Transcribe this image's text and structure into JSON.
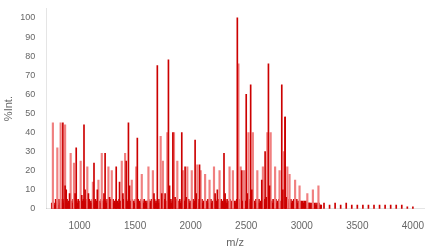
{
  "chart_data": {
    "type": "bar",
    "xlabel": "m/z",
    "ylabel": "%Int.",
    "xlim": [
      700,
      4100
    ],
    "ylim": [
      0,
      105
    ],
    "xticks": [
      1000,
      1500,
      2000,
      2500,
      3000,
      3500,
      4000
    ],
    "yticks": [
      0,
      10,
      20,
      30,
      40,
      50,
      60,
      70,
      80,
      90,
      100
    ],
    "grid": false,
    "series": [
      {
        "color": "#cc0000",
        "x": [
          750,
          755,
          762,
          770,
          778,
          785,
          793,
          800,
          808,
          815,
          822,
          828,
          836,
          842,
          848,
          856,
          862,
          868,
          875,
          882,
          888,
          895,
          902,
          908,
          915,
          922,
          928,
          935,
          942,
          948,
          955,
          962,
          968,
          975,
          982,
          988,
          995,
          1002,
          1008,
          1015,
          1022,
          1028,
          1035,
          1042,
          1048,
          1055,
          1062,
          1068,
          1075,
          1082,
          1088,
          1095,
          1102,
          1108,
          1115,
          1122,
          1128,
          1135,
          1142,
          1148,
          1155,
          1162,
          1168,
          1175,
          1182,
          1188,
          1195,
          1202,
          1208,
          1215,
          1222,
          1228,
          1235,
          1242,
          1248,
          1255,
          1262,
          1268,
          1275,
          1282,
          1288,
          1295,
          1302,
          1308,
          1315,
          1322,
          1328,
          1335,
          1342,
          1348,
          1355,
          1362,
          1368,
          1375,
          1382,
          1388,
          1395,
          1402,
          1408,
          1415,
          1422,
          1428,
          1435,
          1442,
          1448,
          1455,
          1462,
          1468,
          1475,
          1482,
          1488,
          1495,
          1502,
          1508,
          1515,
          1522,
          1528,
          1535,
          1542,
          1548,
          1555,
          1562,
          1568,
          1575,
          1582,
          1588,
          1595,
          1602,
          1608,
          1615,
          1622,
          1628,
          1635,
          1642,
          1648,
          1655,
          1662,
          1668,
          1675,
          1682,
          1688,
          1695,
          1702,
          1708,
          1715,
          1722,
          1728,
          1735,
          1742,
          1748,
          1755,
          1762,
          1768,
          1775,
          1782,
          1788,
          1795,
          1802,
          1808,
          1815,
          1822,
          1828,
          1835,
          1842,
          1848,
          1855,
          1862,
          1868,
          1875,
          1882,
          1888,
          1895,
          1902,
          1908,
          1915,
          1922,
          1928,
          1935,
          1942,
          1948,
          1955,
          1962,
          1968,
          1975,
          1982,
          1988,
          1995,
          2002,
          2008,
          2015,
          2022,
          2028,
          2035,
          2042,
          2048,
          2055,
          2062,
          2068,
          2075,
          2082,
          2088,
          2095,
          2102,
          2108,
          2115,
          2122,
          2128,
          2135,
          2142,
          2148,
          2155,
          2162,
          2168,
          2175,
          2182,
          2188,
          2195,
          2202,
          2208,
          2215,
          2222,
          2228,
          2235,
          2242,
          2248,
          2255,
          2262,
          2268,
          2275,
          2282,
          2288,
          2295,
          2302,
          2308,
          2315,
          2322,
          2328,
          2335,
          2342,
          2348,
          2355,
          2362,
          2368,
          2375,
          2382,
          2388,
          2395,
          2402,
          2408,
          2415,
          2422,
          2428,
          2435,
          2442,
          2448,
          2455,
          2462,
          2468,
          2475,
          2482,
          2488,
          2495,
          2502,
          2508,
          2515,
          2522,
          2528,
          2535,
          2542,
          2548,
          2555,
          2562,
          2568,
          2575,
          2582,
          2588,
          2595,
          2602,
          2608,
          2615,
          2622,
          2628,
          2635,
          2642,
          2648,
          2655,
          2662,
          2668,
          2675,
          2682,
          2688,
          2695,
          2702,
          2708,
          2715,
          2722,
          2728,
          2735,
          2742,
          2748,
          2755,
          2762,
          2768,
          2775,
          2782,
          2788,
          2795,
          2802,
          2808,
          2815,
          2822,
          2828,
          2835,
          2842,
          2848,
          2855,
          2862,
          2868,
          2875,
          2882,
          2888,
          2895,
          2902,
          2908,
          2915,
          2922,
          2928,
          2935,
          2942,
          2948,
          2955,
          2962,
          2968,
          2975,
          2982,
          2988,
          2995,
          3002,
          3008,
          3015,
          3022,
          3028,
          3035,
          3042,
          3048,
          3055,
          3062,
          3068,
          3075,
          3082,
          3088,
          3095,
          3102,
          3108,
          3115,
          3122,
          3128,
          3135,
          3142,
          3148,
          3155,
          3162,
          3168,
          3175,
          3200,
          3250,
          3300,
          3350,
          3400,
          3450,
          3500,
          3550,
          3600,
          3650,
          3700,
          3750,
          3800,
          3850,
          3900,
          3950,
          4000
        ],
        "values": [
          3,
          2,
          4,
          3,
          2,
          5,
          3,
          4,
          2,
          5,
          3,
          4,
          3,
          5,
          4,
          3,
          5,
          3,
          4,
          3,
          5,
          3,
          4,
          3,
          5,
          3,
          4,
          3,
          5,
          3,
          4,
          3,
          5,
          4,
          3,
          5,
          3,
          4,
          3,
          5,
          3,
          4,
          5,
          3,
          4,
          3,
          5,
          3,
          4,
          3,
          5,
          3,
          4,
          3,
          5,
          3,
          4,
          3,
          5,
          3,
          4,
          3,
          5,
          3,
          4,
          3,
          5,
          3,
          4,
          3,
          5,
          3,
          4,
          3,
          5,
          3,
          4,
          3,
          5,
          3,
          4,
          3,
          5,
          3,
          4,
          3,
          5,
          3,
          4,
          3,
          5,
          3,
          4,
          3,
          4,
          3,
          5,
          3,
          4,
          3,
          5,
          3,
          4,
          3,
          5,
          3,
          4,
          3,
          5,
          3,
          4,
          3,
          5,
          3,
          4,
          3,
          5,
          3,
          4,
          3,
          5,
          3,
          4,
          3,
          5,
          3,
          4,
          3,
          4,
          3,
          5,
          3,
          4,
          3,
          5,
          3,
          4,
          3,
          5,
          3,
          4,
          3,
          4,
          3,
          5,
          3,
          4,
          3,
          5,
          3,
          4,
          3,
          5,
          3,
          4,
          3,
          5,
          3,
          4,
          3,
          5,
          3,
          4,
          3,
          5,
          3,
          4,
          3,
          5,
          3,
          4,
          3,
          5,
          3,
          4,
          3,
          5,
          3,
          4,
          3,
          5,
          3,
          4,
          3,
          5,
          3,
          4,
          3,
          4,
          3,
          5,
          3,
          4,
          3,
          5,
          3,
          4,
          3,
          5,
          3,
          4,
          3,
          5,
          3,
          4,
          3,
          5,
          3,
          4,
          3,
          5,
          3,
          4,
          3,
          5,
          3,
          4,
          3,
          4,
          3,
          5,
          3,
          4,
          3,
          5,
          3,
          4,
          3,
          5,
          3,
          4,
          3,
          5,
          3,
          4,
          3,
          5,
          3,
          4,
          3,
          5,
          3,
          4,
          3,
          5,
          3,
          4,
          3,
          4,
          5,
          4,
          3,
          5,
          3,
          4,
          5,
          3,
          4,
          3,
          5,
          3,
          4,
          3,
          5,
          3,
          4,
          3,
          5,
          3,
          4,
          3,
          5,
          3,
          4,
          3,
          5,
          3,
          4,
          3,
          5,
          3,
          4,
          3,
          5,
          3,
          4,
          3,
          5,
          3,
          4,
          3,
          5,
          4,
          3,
          5,
          3,
          4,
          3,
          5,
          3,
          4,
          3,
          5,
          3,
          4,
          3,
          5,
          3,
          4,
          3,
          5,
          3,
          4,
          3,
          5,
          3,
          4,
          3,
          5,
          3,
          4,
          3,
          5,
          3,
          4,
          3,
          5,
          3,
          4,
          3,
          5,
          3,
          4,
          3,
          4,
          3,
          4,
          3,
          4,
          3,
          4,
          3,
          4,
          3,
          4,
          3,
          3,
          3,
          3,
          2,
          3,
          2,
          3,
          2,
          3,
          2,
          3,
          2,
          3,
          2,
          3,
          2,
          2,
          2,
          3,
          2,
          3,
          2,
          3,
          2,
          2,
          2,
          2,
          2,
          2,
          2,
          2,
          2,
          2,
          1,
          1
        ]
      },
      {
        "color": "#f08080",
        "x": [
          760,
          800,
          830,
          870,
          920,
          950,
          1010,
          1070,
          1120,
          1170,
          1200,
          1260,
          1290,
          1380,
          1410,
          1470,
          1510,
          1560,
          1620,
          1660,
          1730,
          1750,
          1790,
          1850,
          1880,
          1930,
          1970,
          2010,
          2060,
          2090,
          2130,
          2170,
          2210,
          2260,
          2350,
          2380,
          2430,
          2450,
          2480,
          2520,
          2560,
          2600,
          2650,
          2690,
          2720,
          2760,
          2800,
          2840,
          2870,
          2890,
          2940,
          2980,
          3050,
          3100,
          3150
        ],
        "values": [
          45,
          32,
          45,
          44,
          29,
          24,
          25,
          22,
          14,
          15,
          29,
          22,
          20,
          25,
          29,
          15,
          22,
          18,
          22,
          20,
          38,
          25,
          40,
          40,
          25,
          20,
          22,
          20,
          23,
          20,
          18,
          15,
          22,
          20,
          22,
          20,
          76,
          22,
          20,
          40,
          40,
          20,
          22,
          40,
          40,
          22,
          20,
          30,
          22,
          18,
          15,
          12,
          8,
          10,
          12
        ]
      },
      {
        "color": "#cc0000",
        "x": [
          850,
          970,
          1040,
          1130,
          1230,
          1330,
          1440,
          1520,
          1700,
          1800,
          1840,
          1920,
          1950,
          2040,
          2080,
          2300,
          2420,
          2500,
          2540,
          2670,
          2700,
          2820,
          2850,
          870,
          880,
          910,
          960,
          1020,
          1050,
          1080,
          1160,
          1220,
          1270,
          1360,
          1390,
          1420,
          1450,
          1670,
          1740,
          1770,
          1810,
          1860,
          1960,
          2050,
          2220,
          2240,
          2310,
          2460,
          2510,
          2550,
          2640,
          2680,
          2710,
          2830,
          2860,
          2850
        ],
        "values": [
          45,
          32,
          44,
          24,
          29,
          22,
          45,
          37,
          75,
          78,
          40,
          40,
          22,
          36,
          23,
          29,
          100,
          60,
          65,
          30,
          76,
          65,
          48,
          12,
          10,
          8,
          8,
          7,
          10,
          8,
          10,
          8,
          6,
          14,
          8,
          25,
          12,
          8,
          8,
          8,
          12,
          6,
          6,
          8,
          8,
          10,
          8,
          20,
          8,
          10,
          15,
          6,
          12,
          10,
          6,
          48
        ]
      }
    ]
  }
}
